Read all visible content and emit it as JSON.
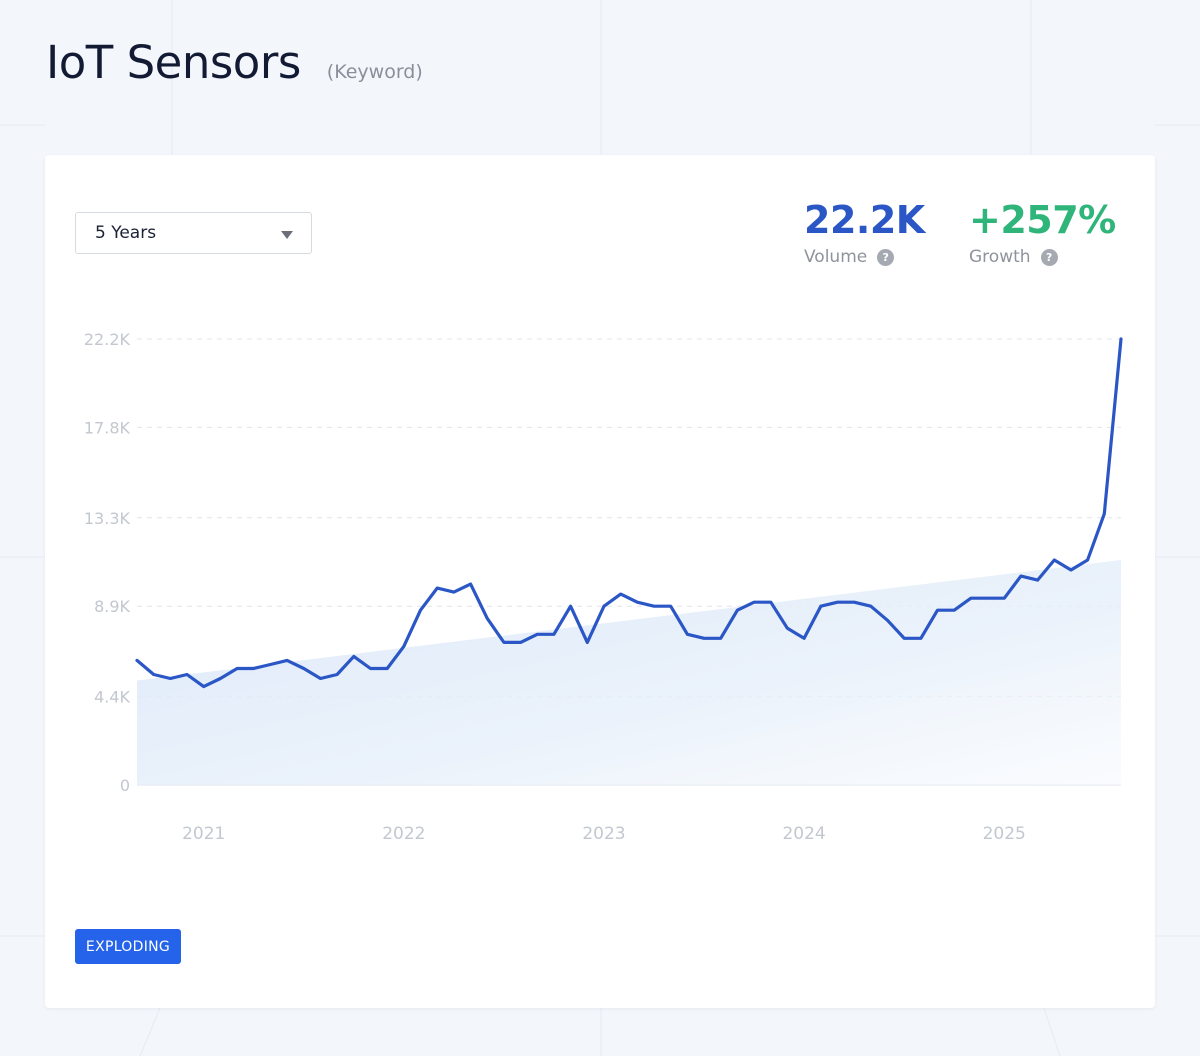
{
  "header": {
    "title": "IoT Sensors",
    "kind": "(Keyword)"
  },
  "controls": {
    "range_label": "5 Years"
  },
  "stats": {
    "volume": {
      "value": "22.2K",
      "label": "Volume"
    },
    "growth": {
      "value": "+257%",
      "label": "Growth"
    }
  },
  "badge": {
    "label": "EXPLODING"
  },
  "colors": {
    "line": "#2a56c6",
    "volume": "#2a56c6",
    "growth": "#2fb47a",
    "badge": "#2563eb",
    "trend_fill": "#dbe8f8"
  },
  "chart_data": {
    "type": "line",
    "title": "",
    "xlabel": "",
    "ylabel": "",
    "ylim": [
      0,
      22200
    ],
    "y_ticks": [
      0,
      4400,
      8900,
      13300,
      17800,
      22200
    ],
    "y_tick_labels": [
      "0",
      "4.4K",
      "8.9K",
      "13.3K",
      "17.8K",
      "22.2K"
    ],
    "x_tick_labels": [
      "2021",
      "2022",
      "2023",
      "2024",
      "2025"
    ],
    "grid": true,
    "series": [
      {
        "values": [
          6200,
          5500,
          5300,
          5500,
          4900,
          5300,
          5800,
          5800,
          6000,
          6200,
          5800,
          5300,
          5500,
          6400,
          5800,
          5800,
          6900,
          8700,
          9800,
          9600,
          10000,
          8300,
          7100,
          7100,
          7500,
          7500,
          8900,
          7100,
          8900,
          9500,
          9100,
          8900,
          8900,
          7500,
          7300,
          7300,
          8700,
          9100,
          9100,
          7800,
          7300,
          8900,
          9100,
          9100,
          8900,
          8200,
          7300,
          7300,
          8700,
          8700,
          9300,
          9300,
          9300,
          10400,
          10200,
          11200,
          10700,
          11200,
          13500,
          22200
        ]
      }
    ],
    "trend": {
      "start": 5200,
      "end": 11200
    }
  }
}
